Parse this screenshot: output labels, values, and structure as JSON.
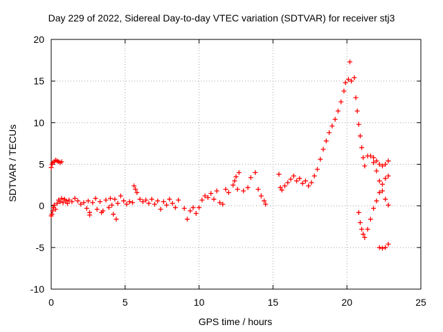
{
  "chart_data": {
    "type": "scatter",
    "title": "Day 229 of 2022, Sidereal Day-to-day VTEC variation (SDTVAR) for receiver stj3",
    "xlabel": "GPS time / hours",
    "ylabel": "SDTVAR / TECUs",
    "xlim": [
      0,
      25
    ],
    "ylim": [
      -10,
      20
    ],
    "xticks": [
      "0",
      "5",
      "10",
      "15",
      "20",
      "25"
    ],
    "yticks": [
      "-10",
      "-5",
      "0",
      "5",
      "10",
      "15",
      "20"
    ],
    "grid": true,
    "marker": "+",
    "color": "#ff0000",
    "series": [
      {
        "name": "SDTVAR",
        "points": [
          [
            0.0,
            -1.2
          ],
          [
            0.05,
            -1.0
          ],
          [
            0.1,
            -0.6
          ],
          [
            0.15,
            -0.2
          ],
          [
            0.2,
            0.1
          ],
          [
            0.3,
            -0.4
          ],
          [
            0.4,
            0.3
          ],
          [
            0.5,
            0.7
          ],
          [
            0.6,
            0.5
          ],
          [
            0.7,
            0.9
          ],
          [
            0.0,
            4.6
          ],
          [
            0.05,
            5.0
          ],
          [
            0.1,
            5.2
          ],
          [
            0.2,
            5.3
          ],
          [
            0.3,
            5.5
          ],
          [
            0.4,
            5.4
          ],
          [
            0.5,
            5.3
          ],
          [
            0.6,
            5.2
          ],
          [
            0.7,
            5.3
          ],
          [
            0.8,
            0.4
          ],
          [
            0.9,
            0.8
          ],
          [
            1.0,
            0.6
          ],
          [
            1.1,
            0.3
          ],
          [
            1.2,
            0.7
          ],
          [
            1.4,
            0.5
          ],
          [
            1.6,
            0.9
          ],
          [
            1.8,
            0.6
          ],
          [
            2.0,
            0.2
          ],
          [
            2.2,
            0.4
          ],
          [
            2.4,
            -0.3
          ],
          [
            2.5,
            0.6
          ],
          [
            2.6,
            -0.8
          ],
          [
            2.8,
            0.4
          ],
          [
            3.0,
            0.9
          ],
          [
            3.1,
            -0.4
          ],
          [
            3.3,
            0.5
          ],
          [
            3.5,
            -0.6
          ],
          [
            3.7,
            0.7
          ],
          [
            3.9,
            -0.2
          ],
          [
            4.0,
            0.9
          ],
          [
            4.1,
            0.1
          ],
          [
            4.3,
            0.8
          ],
          [
            4.5,
            0.3
          ],
          [
            4.7,
            1.2
          ],
          [
            4.9,
            0.6
          ],
          [
            5.1,
            0.2
          ],
          [
            5.3,
            0.5
          ],
          [
            5.5,
            0.4
          ],
          [
            5.6,
            2.4
          ],
          [
            5.7,
            2.0
          ],
          [
            5.8,
            1.6
          ],
          [
            6.0,
            0.8
          ],
          [
            6.2,
            0.5
          ],
          [
            6.4,
            0.7
          ],
          [
            6.6,
            0.3
          ],
          [
            6.8,
            0.8
          ],
          [
            7.0,
            0.2
          ],
          [
            7.2,
            0.6
          ],
          [
            7.4,
            -0.4
          ],
          [
            7.6,
            0.5
          ],
          [
            7.8,
            0.1
          ],
          [
            8.0,
            0.8
          ],
          [
            8.2,
            0.3
          ],
          [
            8.4,
            -0.2
          ],
          [
            8.6,
            0.7
          ],
          [
            4.2,
            -1.0
          ],
          [
            4.4,
            -1.6
          ],
          [
            3.4,
            -0.8
          ],
          [
            2.6,
            -1.1
          ],
          [
            9.0,
            -0.3
          ],
          [
            9.2,
            -1.6
          ],
          [
            9.4,
            -0.6
          ],
          [
            9.6,
            -0.2
          ],
          [
            9.8,
            -0.9
          ],
          [
            10.0,
            -0.2
          ],
          [
            10.2,
            0.7
          ],
          [
            10.4,
            1.2
          ],
          [
            10.6,
            1.0
          ],
          [
            10.8,
            1.5
          ],
          [
            11.0,
            0.8
          ],
          [
            11.2,
            1.8
          ],
          [
            11.4,
            0.4
          ],
          [
            11.6,
            0.2
          ],
          [
            11.8,
            2.0
          ],
          [
            12.0,
            1.6
          ],
          [
            12.3,
            2.5
          ],
          [
            12.4,
            3.0
          ],
          [
            12.5,
            3.5
          ],
          [
            12.6,
            2.0
          ],
          [
            12.7,
            4.0
          ],
          [
            13.0,
            1.8
          ],
          [
            13.3,
            2.2
          ],
          [
            13.5,
            3.4
          ],
          [
            13.8,
            4.0
          ],
          [
            14.0,
            2.0
          ],
          [
            14.2,
            1.2
          ],
          [
            14.4,
            0.6
          ],
          [
            14.5,
            0.2
          ],
          [
            15.4,
            3.8
          ],
          [
            15.5,
            2.2
          ],
          [
            15.6,
            1.9
          ],
          [
            15.8,
            2.4
          ],
          [
            16.0,
            2.8
          ],
          [
            16.2,
            3.2
          ],
          [
            16.4,
            3.6
          ],
          [
            16.6,
            3.0
          ],
          [
            16.8,
            3.3
          ],
          [
            17.0,
            2.7
          ],
          [
            17.2,
            3.0
          ],
          [
            17.4,
            2.4
          ],
          [
            17.6,
            2.8
          ],
          [
            17.8,
            3.6
          ],
          [
            18.0,
            4.4
          ],
          [
            18.2,
            5.6
          ],
          [
            18.4,
            6.8
          ],
          [
            18.6,
            7.8
          ],
          [
            18.8,
            8.8
          ],
          [
            19.0,
            9.6
          ],
          [
            19.2,
            10.4
          ],
          [
            19.4,
            11.4
          ],
          [
            19.6,
            12.5
          ],
          [
            19.8,
            13.8
          ],
          [
            19.9,
            14.8
          ],
          [
            20.1,
            15.2
          ],
          [
            20.2,
            17.3
          ],
          [
            20.3,
            15.0
          ],
          [
            20.5,
            15.4
          ],
          [
            20.6,
            13.0
          ],
          [
            20.7,
            11.4
          ],
          [
            20.8,
            9.8
          ],
          [
            20.9,
            8.4
          ],
          [
            21.0,
            7.0
          ],
          [
            21.1,
            5.8
          ],
          [
            21.2,
            4.8
          ],
          [
            20.8,
            -0.8
          ],
          [
            20.9,
            -2.0
          ],
          [
            21.0,
            -2.8
          ],
          [
            21.1,
            -3.4
          ],
          [
            21.2,
            -3.8
          ],
          [
            21.4,
            -2.8
          ],
          [
            21.6,
            -1.6
          ],
          [
            21.8,
            -0.3
          ],
          [
            22.0,
            0.6
          ],
          [
            22.2,
            1.6
          ],
          [
            22.4,
            2.6
          ],
          [
            22.6,
            3.3
          ],
          [
            22.8,
            3.6
          ],
          [
            21.4,
            6.0
          ],
          [
            21.6,
            6.0
          ],
          [
            21.8,
            5.8
          ],
          [
            22.0,
            5.4
          ],
          [
            22.2,
            5.0
          ],
          [
            22.4,
            4.8
          ],
          [
            22.6,
            5.0
          ],
          [
            22.8,
            5.4
          ],
          [
            21.8,
            5.2
          ],
          [
            22.0,
            4.2
          ],
          [
            22.2,
            3.0
          ],
          [
            22.4,
            1.8
          ],
          [
            22.6,
            0.8
          ],
          [
            22.8,
            0.1
          ],
          [
            22.2,
            -5.0
          ],
          [
            22.4,
            -5.1
          ],
          [
            22.6,
            -5.0
          ],
          [
            22.8,
            -4.6
          ]
        ]
      }
    ]
  }
}
